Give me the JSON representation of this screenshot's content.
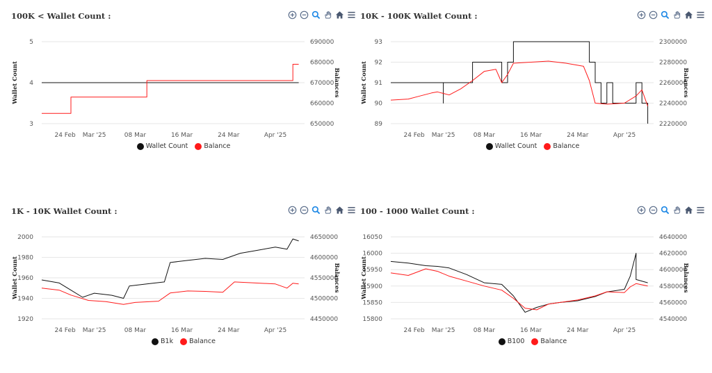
{
  "toolbar_icons": [
    "zoom-in-icon",
    "zoom-out-icon",
    "zoom-select-icon",
    "pan-hand-icon",
    "home-reset-icon",
    "menu-icon"
  ],
  "colors": {
    "black": "#111111",
    "red": "#ff1a1a",
    "grid": "#e6e6e6",
    "text": "#555555",
    "icon": "#5b6d8a",
    "icon_active": "#1e88e5"
  },
  "chart_data": [
    {
      "type": "line",
      "title": "100K < Wallet Count :",
      "ylabel": "Wallet Count",
      "y2label": "Balances",
      "x_ticks": [
        "24 Feb",
        "Mar '25",
        "08 Mar",
        "16 Mar",
        "24 Mar",
        "Apr '25"
      ],
      "y_ticks": [
        "3",
        "4",
        "5"
      ],
      "y2_ticks": [
        "650000",
        "660000",
        "670000",
        "680000",
        "690000"
      ],
      "ylim": [
        3,
        5
      ],
      "y2lim": [
        650000,
        690000
      ],
      "legend": [
        "Wallet Count",
        "Balance"
      ],
      "series": [
        {
          "name": "Wallet Count",
          "axis": "left",
          "color": "#111111",
          "step": true,
          "points": [
            [
              "2025-02-20",
              4
            ],
            [
              "2025-04-05",
              4
            ]
          ]
        },
        {
          "name": "Balance",
          "axis": "right",
          "color": "#ff1a1a",
          "step": true,
          "points": [
            [
              "2025-02-20",
              655000
            ],
            [
              "2025-02-25",
              663000
            ],
            [
              "2025-03-10",
              671000
            ],
            [
              "2025-04-04",
              679000
            ],
            [
              "2025-04-05",
              679000
            ]
          ]
        }
      ]
    },
    {
      "type": "line",
      "title": "10K - 100K Wallet Count :",
      "ylabel": "Wallet Count",
      "y2label": "Balances",
      "x_ticks": [
        "24 Feb",
        "Mar '25",
        "08 Mar",
        "16 Mar",
        "24 Mar",
        "Apr '25"
      ],
      "y_ticks": [
        "89",
        "90",
        "91",
        "92",
        "93"
      ],
      "y2_ticks": [
        "2220000",
        "2240000",
        "2260000",
        "2280000",
        "2300000"
      ],
      "ylim": [
        89,
        93
      ],
      "y2lim": [
        2220000,
        2300000
      ],
      "legend": [
        "Wallet Count",
        "Balance"
      ],
      "series": [
        {
          "name": "Wallet Count",
          "axis": "left",
          "color": "#111111",
          "step": true,
          "points": [
            [
              "2025-02-20",
              91
            ],
            [
              "2025-02-28",
              91
            ],
            [
              "2025-03-01",
              90
            ],
            [
              "2025-03-01",
              91
            ],
            [
              "2025-03-06",
              92
            ],
            [
              "2025-03-11",
              92
            ],
            [
              "2025-03-11",
              91
            ],
            [
              "2025-03-12",
              92
            ],
            [
              "2025-03-13",
              93
            ],
            [
              "2025-03-25",
              93
            ],
            [
              "2025-03-26",
              92
            ],
            [
              "2025-03-27",
              91
            ],
            [
              "2025-03-28",
              90
            ],
            [
              "2025-03-29",
              91
            ],
            [
              "2025-03-30",
              90
            ],
            [
              "2025-04-02",
              90
            ],
            [
              "2025-04-03",
              91
            ],
            [
              "2025-04-04",
              90
            ],
            [
              "2025-04-05",
              89
            ]
          ]
        },
        {
          "name": "Balance",
          "axis": "right",
          "color": "#ff1a1a",
          "step": false,
          "points": [
            [
              "2025-02-20",
              2243000
            ],
            [
              "2025-02-23",
              2244000
            ],
            [
              "2025-02-25",
              2247000
            ],
            [
              "2025-02-27",
              2250000
            ],
            [
              "2025-02-28",
              2251000
            ],
            [
              "2025-03-02",
              2248000
            ],
            [
              "2025-03-04",
              2254000
            ],
            [
              "2025-03-06",
              2262000
            ],
            [
              "2025-03-08",
              2271000
            ],
            [
              "2025-03-10",
              2273000
            ],
            [
              "2025-03-11",
              2260000
            ],
            [
              "2025-03-12",
              2268000
            ],
            [
              "2025-03-13",
              2279000
            ],
            [
              "2025-03-16",
              2280000
            ],
            [
              "2025-03-19",
              2281000
            ],
            [
              "2025-03-22",
              2279000
            ],
            [
              "2025-03-25",
              2276000
            ],
            [
              "2025-03-26",
              2262000
            ],
            [
              "2025-03-27",
              2240000
            ],
            [
              "2025-03-29",
              2239000
            ],
            [
              "2025-04-01",
              2240000
            ],
            [
              "2025-04-03",
              2247000
            ],
            [
              "2025-04-04",
              2253000
            ],
            [
              "2025-04-05",
              2237000
            ]
          ]
        }
      ]
    },
    {
      "type": "line",
      "title": "1K - 10K Wallet Count :",
      "ylabel": "Wallet Count",
      "y2label": "Balances",
      "x_ticks": [
        "24 Feb",
        "Mar '25",
        "08 Mar",
        "16 Mar",
        "24 Mar",
        "Apr '25"
      ],
      "y_ticks": [
        "1920",
        "1940",
        "1960",
        "1980",
        "2000"
      ],
      "y2_ticks": [
        "4450000",
        "4500000",
        "4550000",
        "4600000",
        "4650000"
      ],
      "ylim": [
        1920,
        2000
      ],
      "y2lim": [
        4450000,
        4650000
      ],
      "legend": [
        "B1k",
        "Balance"
      ],
      "series": [
        {
          "name": "B1k",
          "axis": "left",
          "color": "#111111",
          "step": false,
          "points": [
            [
              "2025-02-20",
              1958
            ],
            [
              "2025-02-23",
              1955
            ],
            [
              "2025-02-25",
              1948
            ],
            [
              "2025-02-27",
              1941
            ],
            [
              "2025-03-01",
              1945
            ],
            [
              "2025-03-04",
              1943
            ],
            [
              "2025-03-06",
              1940
            ],
            [
              "2025-03-07",
              1952
            ],
            [
              "2025-03-10",
              1954
            ],
            [
              "2025-03-13",
              1956
            ],
            [
              "2025-03-14",
              1975
            ],
            [
              "2025-03-17",
              1977
            ],
            [
              "2025-03-20",
              1979
            ],
            [
              "2025-03-23",
              1978
            ],
            [
              "2025-03-26",
              1984
            ],
            [
              "2025-03-29",
              1987
            ],
            [
              "2025-04-01",
              1990
            ],
            [
              "2025-04-03",
              1988
            ],
            [
              "2025-04-04",
              1998
            ],
            [
              "2025-04-05",
              1996
            ]
          ]
        },
        {
          "name": "Balance",
          "axis": "right",
          "color": "#ff1a1a",
          "step": false,
          "points": [
            [
              "2025-02-20",
              4525000
            ],
            [
              "2025-02-23",
              4520000
            ],
            [
              "2025-02-25",
              4508000
            ],
            [
              "2025-02-28",
              4495000
            ],
            [
              "2025-03-03",
              4492000
            ],
            [
              "2025-03-06",
              4485000
            ],
            [
              "2025-03-08",
              4490000
            ],
            [
              "2025-03-12",
              4493000
            ],
            [
              "2025-03-14",
              4513000
            ],
            [
              "2025-03-17",
              4518000
            ],
            [
              "2025-03-20",
              4517000
            ],
            [
              "2025-03-23",
              4515000
            ],
            [
              "2025-03-25",
              4540000
            ],
            [
              "2025-03-28",
              4538000
            ],
            [
              "2025-04-01",
              4535000
            ],
            [
              "2025-04-03",
              4525000
            ],
            [
              "2025-04-04",
              4537000
            ],
            [
              "2025-04-05",
              4535000
            ]
          ]
        }
      ]
    },
    {
      "type": "line",
      "title": "100 - 1000 Wallet Count :",
      "ylabel": "Wallet Count",
      "y2label": "Balances",
      "x_ticks": [
        "24 Feb",
        "Mar '25",
        "08 Mar",
        "16 Mar",
        "24 Mar",
        "Apr '25"
      ],
      "y_ticks": [
        "15800",
        "15850",
        "15900",
        "15950",
        "16000",
        "16050"
      ],
      "y2_ticks": [
        "4540000",
        "4560000",
        "4580000",
        "4600000",
        "4620000",
        "4640000"
      ],
      "ylim": [
        15800,
        16050
      ],
      "y2lim": [
        4540000,
        4640000
      ],
      "legend": [
        "B100",
        "Balance"
      ],
      "series": [
        {
          "name": "B100",
          "axis": "left",
          "color": "#111111",
          "step": false,
          "points": [
            [
              "2025-02-20",
              15975
            ],
            [
              "2025-02-23",
              15970
            ],
            [
              "2025-02-26",
              15962
            ],
            [
              "2025-02-28",
              15960
            ],
            [
              "2025-03-02",
              15955
            ],
            [
              "2025-03-05",
              15935
            ],
            [
              "2025-03-08",
              15910
            ],
            [
              "2025-03-11",
              15905
            ],
            [
              "2025-03-13",
              15870
            ],
            [
              "2025-03-15",
              15820
            ],
            [
              "2025-03-17",
              15835
            ],
            [
              "2025-03-19",
              15845
            ],
            [
              "2025-03-21",
              15850
            ],
            [
              "2025-03-24",
              15855
            ],
            [
              "2025-03-27",
              15868
            ],
            [
              "2025-03-29",
              15882
            ],
            [
              "2025-04-01",
              15890
            ],
            [
              "2025-04-02",
              15930
            ],
            [
              "2025-04-03",
              16000
            ],
            [
              "2025-04-03",
              15920
            ],
            [
              "2025-04-05",
              15910
            ]
          ]
        },
        {
          "name": "Balance",
          "axis": "right",
          "color": "#ff1a1a",
          "step": false,
          "points": [
            [
              "2025-02-20",
              4596000
            ],
            [
              "2025-02-23",
              4593000
            ],
            [
              "2025-02-26",
              4601000
            ],
            [
              "2025-02-28",
              4598000
            ],
            [
              "2025-03-02",
              4592000
            ],
            [
              "2025-03-05",
              4586000
            ],
            [
              "2025-03-08",
              4580000
            ],
            [
              "2025-03-11",
              4575000
            ],
            [
              "2025-03-13",
              4565000
            ],
            [
              "2025-03-15",
              4553000
            ],
            [
              "2025-03-17",
              4551000
            ],
            [
              "2025-03-19",
              4558000
            ],
            [
              "2025-03-21",
              4560000
            ],
            [
              "2025-03-24",
              4563000
            ],
            [
              "2025-03-27",
              4568000
            ],
            [
              "2025-03-29",
              4573000
            ],
            [
              "2025-04-01",
              4572000
            ],
            [
              "2025-04-02",
              4579000
            ],
            [
              "2025-04-03",
              4583000
            ],
            [
              "2025-04-05",
              4580000
            ]
          ]
        }
      ]
    }
  ]
}
